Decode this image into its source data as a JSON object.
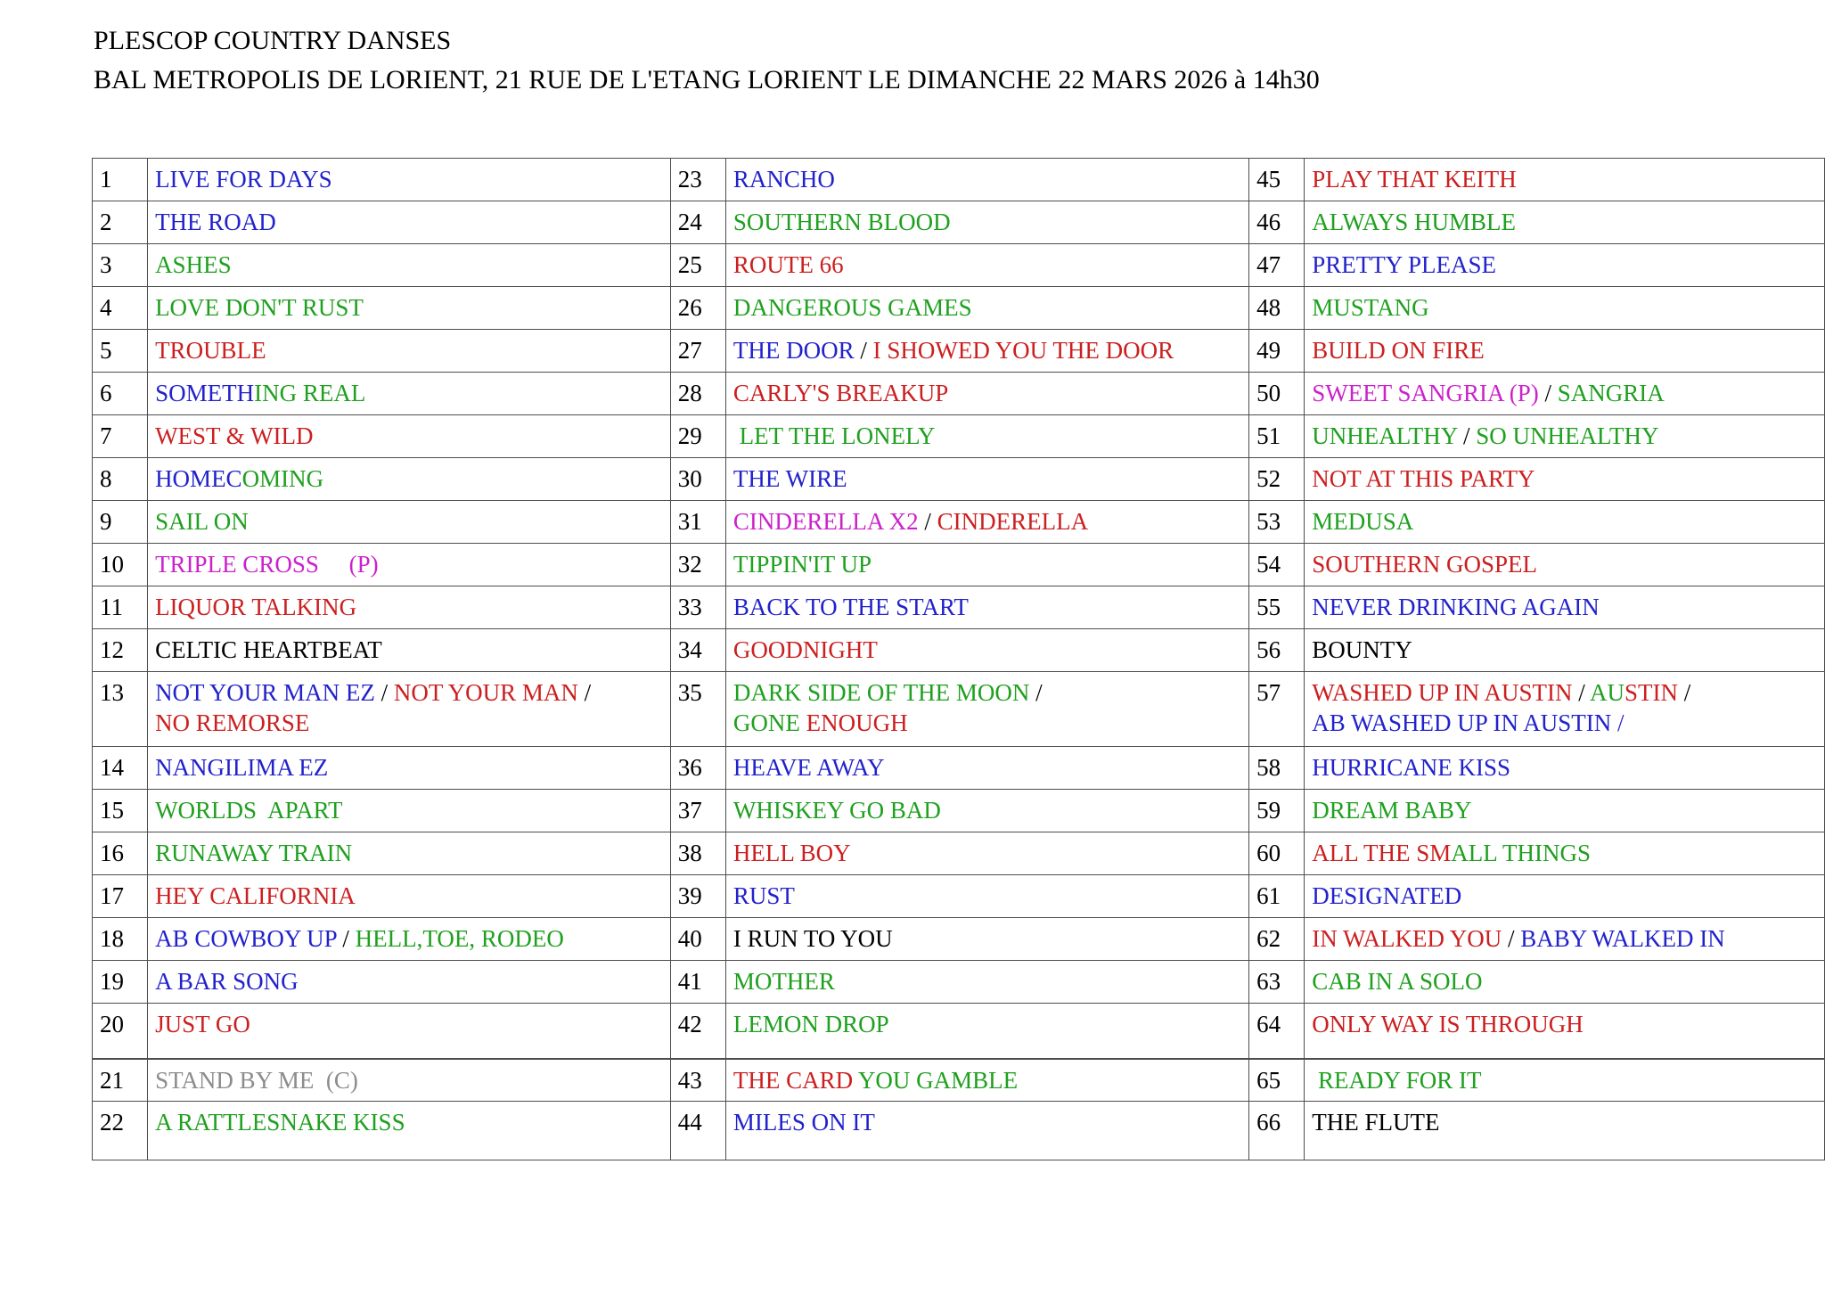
{
  "title": {
    "line1": "PLESCOP COUNTRY DANSES",
    "line2": "BAL METROPOLIS DE LORIENT, 21 RUE DE L'ETANG LORIENT LE DIMANCHE 22 MARS 2026 à 14h30"
  },
  "colors": {
    "blue": "#2222CC",
    "green": "#1FA01F",
    "red": "#CC1F1F",
    "magenta": "#CC22CC",
    "black": "#000000",
    "gray": "#8C8C8C"
  },
  "table": {
    "rows": [
      {
        "cells": [
          {
            "num": "1",
            "segs": [
              {
                "t": "LIVE FOR DAYS",
                "c": "blue"
              }
            ]
          },
          {
            "num": "23",
            "segs": [
              {
                "t": "RANCHO",
                "c": "blue"
              }
            ]
          },
          {
            "num": "45",
            "segs": [
              {
                "t": "PLAY THAT KEITH",
                "c": "red"
              }
            ]
          }
        ]
      },
      {
        "cells": [
          {
            "num": "2",
            "segs": [
              {
                "t": "THE ROAD",
                "c": "blue"
              }
            ]
          },
          {
            "num": "24",
            "segs": [
              {
                "t": "SOUTHERN BLOOD",
                "c": "green"
              }
            ]
          },
          {
            "num": "46",
            "segs": [
              {
                "t": "ALWAYS HUMBLE",
                "c": "green"
              }
            ]
          }
        ]
      },
      {
        "cells": [
          {
            "num": "3",
            "segs": [
              {
                "t": "ASHES",
                "c": "green"
              }
            ]
          },
          {
            "num": "25",
            "segs": [
              {
                "t": "ROUTE 66",
                "c": "red"
              }
            ]
          },
          {
            "num": "47",
            "segs": [
              {
                "t": "PRETTY PLEASE",
                "c": "blue"
              }
            ]
          }
        ]
      },
      {
        "cells": [
          {
            "num": "4",
            "segs": [
              {
                "t": "LOVE DON'T RUST",
                "c": "green"
              }
            ]
          },
          {
            "num": "26",
            "segs": [
              {
                "t": "DANGEROUS GAMES",
                "c": "green"
              }
            ]
          },
          {
            "num": "48",
            "segs": [
              {
                "t": "MUSTANG",
                "c": "green"
              }
            ]
          }
        ]
      },
      {
        "cells": [
          {
            "num": "5",
            "segs": [
              {
                "t": "TROUBLE",
                "c": "red"
              }
            ]
          },
          {
            "num": "27",
            "segs": [
              {
                "t": "THE DOOR",
                "c": "blue"
              },
              {
                "t": " / ",
                "c": "black"
              },
              {
                "t": "I SHOWED YOU THE DOOR",
                "c": "red"
              }
            ]
          },
          {
            "num": "49",
            "segs": [
              {
                "t": "BUILD ON FIRE",
                "c": "red"
              }
            ]
          }
        ]
      },
      {
        "cells": [
          {
            "num": "6",
            "segs": [
              {
                "t": "SOMETH",
                "c": "blue"
              },
              {
                "t": "ING REAL",
                "c": "green"
              }
            ]
          },
          {
            "num": "28",
            "segs": [
              {
                "t": "CARLY'S BREAKUP",
                "c": "red"
              }
            ]
          },
          {
            "num": "50",
            "segs": [
              {
                "t": "SWEET SANGRIA (P)",
                "c": "magenta"
              },
              {
                "t": " / ",
                "c": "black"
              },
              {
                "t": "SANGRIA",
                "c": "green"
              }
            ]
          }
        ]
      },
      {
        "cells": [
          {
            "num": "7",
            "segs": [
              {
                "t": "WEST & WILD",
                "c": "red"
              }
            ]
          },
          {
            "num": "29",
            "segs": [
              {
                "t": " LET THE LONELY",
                "c": "green"
              }
            ]
          },
          {
            "num": "51",
            "segs": [
              {
                "t": "UNHEALTHY",
                "c": "green"
              },
              {
                "t": " / ",
                "c": "black"
              },
              {
                "t": "SO UNHEALTHY",
                "c": "green"
              }
            ]
          }
        ]
      },
      {
        "cells": [
          {
            "num": "8",
            "segs": [
              {
                "t": "HOMEC",
                "c": "blue"
              },
              {
                "t": "OMING",
                "c": "green"
              }
            ]
          },
          {
            "num": "30",
            "segs": [
              {
                "t": "THE WIRE",
                "c": "blue"
              }
            ]
          },
          {
            "num": "52",
            "segs": [
              {
                "t": "NOT AT THIS PARTY",
                "c": "red"
              }
            ]
          }
        ]
      },
      {
        "cells": [
          {
            "num": "9",
            "segs": [
              {
                "t": "SAIL ON",
                "c": "green"
              }
            ]
          },
          {
            "num": "31",
            "segs": [
              {
                "t": "CINDERELLA X2",
                "c": "magenta"
              },
              {
                "t": " / ",
                "c": "black"
              },
              {
                "t": "CINDERELLA",
                "c": "red"
              }
            ]
          },
          {
            "num": "53",
            "segs": [
              {
                "t": "MEDUSA",
                "c": "green"
              }
            ]
          }
        ]
      },
      {
        "cells": [
          {
            "num": "10",
            "segs": [
              {
                "t": "TRIPLE CROSS     (P)",
                "c": "magenta"
              }
            ]
          },
          {
            "num": "32",
            "segs": [
              {
                "t": "TIPPIN'IT UP",
                "c": "green"
              }
            ]
          },
          {
            "num": "54",
            "segs": [
              {
                "t": "SOUTHERN GOSPEL",
                "c": "red"
              }
            ]
          }
        ]
      },
      {
        "cells": [
          {
            "num": "11",
            "segs": [
              {
                "t": "LIQUOR TALKING",
                "c": "red"
              }
            ]
          },
          {
            "num": "33",
            "segs": [
              {
                "t": "BACK TO THE START",
                "c": "blue"
              }
            ]
          },
          {
            "num": "55",
            "segs": [
              {
                "t": "NEVER DRINKING AGAIN",
                "c": "blue"
              }
            ]
          }
        ]
      },
      {
        "cells": [
          {
            "num": "12",
            "segs": [
              {
                "t": "CELTIC HEARTBEAT",
                "c": "black"
              }
            ]
          },
          {
            "num": "34",
            "segs": [
              {
                "t": "GOODNIGHT",
                "c": "red"
              }
            ]
          },
          {
            "num": "56",
            "segs": [
              {
                "t": "BOUNTY",
                "c": "black"
              }
            ]
          }
        ]
      },
      {
        "cls": "r-double",
        "cells": [
          {
            "num": "13",
            "segs": [
              {
                "t": "NOT YOUR MAN EZ",
                "c": "blue"
              },
              {
                "t": " / ",
                "c": "black"
              },
              {
                "t": "NOT YOUR MAN",
                "c": "red"
              },
              {
                "t": " /",
                "c": "black"
              },
              {
                "br": true
              },
              {
                "t": "NO REMORSE",
                "c": "red"
              }
            ]
          },
          {
            "num": "35",
            "segs": [
              {
                "t": "DARK SIDE OF THE MOON",
                "c": "green"
              },
              {
                "t": " /",
                "c": "black"
              },
              {
                "br": true
              },
              {
                "t": "GONE",
                "c": "green"
              },
              {
                "t": " ENOUGH",
                "c": "red"
              }
            ]
          },
          {
            "num": "57",
            "segs": [
              {
                "t": "WASHED UP IN AUSTIN",
                "c": "red"
              },
              {
                "t": " / ",
                "c": "black"
              },
              {
                "t": "AU",
                "c": "green"
              },
              {
                "t": "STIN",
                "c": "red"
              },
              {
                "t": " /",
                "c": "black"
              },
              {
                "br": true
              },
              {
                "t": "AB WASHED UP IN AUSTIN /",
                "c": "blue"
              }
            ]
          }
        ]
      },
      {
        "cells": [
          {
            "num": "14",
            "segs": [
              {
                "t": "NANGILIMA EZ",
                "c": "blue"
              }
            ]
          },
          {
            "num": "36",
            "segs": [
              {
                "t": "HEAVE AWAY",
                "c": "blue"
              }
            ]
          },
          {
            "num": "58",
            "segs": [
              {
                "t": "HURRICANE KISS",
                "c": "blue"
              }
            ]
          }
        ]
      },
      {
        "cells": [
          {
            "num": "15",
            "segs": [
              {
                "t": "WORLDS  APART",
                "c": "green"
              }
            ]
          },
          {
            "num": "37",
            "segs": [
              {
                "t": "WHISKEY GO BAD",
                "c": "green"
              }
            ]
          },
          {
            "num": "59",
            "segs": [
              {
                "t": "DREAM BABY",
                "c": "green"
              }
            ]
          }
        ]
      },
      {
        "cells": [
          {
            "num": "16",
            "segs": [
              {
                "t": "RUNAWAY TRAIN",
                "c": "green"
              }
            ]
          },
          {
            "num": "38",
            "segs": [
              {
                "t": "HELL BOY",
                "c": "red"
              }
            ]
          },
          {
            "num": "60",
            "segs": [
              {
                "t": "ALL THE SM",
                "c": "red"
              },
              {
                "t": "ALL THINGS",
                "c": "green"
              }
            ]
          }
        ]
      },
      {
        "cells": [
          {
            "num": "17",
            "segs": [
              {
                "t": "HEY CALIFORNIA",
                "c": "red"
              }
            ]
          },
          {
            "num": "39",
            "segs": [
              {
                "t": "RUST",
                "c": "blue"
              }
            ]
          },
          {
            "num": "61",
            "segs": [
              {
                "t": "DESIGNATED",
                "c": "blue"
              }
            ]
          }
        ]
      },
      {
        "cells": [
          {
            "num": "18",
            "segs": [
              {
                "t": "AB COWBOY UP",
                "c": "blue"
              },
              {
                "t": " / ",
                "c": "black"
              },
              {
                "t": "HELL,TOE, RODEO",
                "c": "green"
              }
            ]
          },
          {
            "num": "40",
            "segs": [
              {
                "t": "I RUN TO YOU",
                "c": "black"
              }
            ]
          },
          {
            "num": "62",
            "segs": [
              {
                "t": "IN WALKED YOU",
                "c": "red"
              },
              {
                "t": " / ",
                "c": "black"
              },
              {
                "t": "BABY WALKED IN",
                "c": "blue"
              }
            ]
          }
        ]
      },
      {
        "cells": [
          {
            "num": "19",
            "segs": [
              {
                "t": "A BAR SONG",
                "c": "blue"
              }
            ]
          },
          {
            "num": "41",
            "segs": [
              {
                "t": "MOTHER",
                "c": "green"
              }
            ]
          },
          {
            "num": "63",
            "segs": [
              {
                "t": "CAB IN A SOLO",
                "c": "green"
              }
            ]
          }
        ]
      },
      {
        "cls": "r-tall",
        "cells": [
          {
            "num": "20",
            "segs": [
              {
                "t": "JUST GO",
                "c": "red"
              }
            ]
          },
          {
            "num": "42",
            "segs": [
              {
                "t": "LEMON DROP",
                "c": "green"
              }
            ]
          },
          {
            "num": "64",
            "segs": [
              {
                "t": "ONLY WAY IS THROUGH",
                "c": "red"
              }
            ]
          }
        ]
      },
      {
        "cls": "r-normal thick-top",
        "cells": [
          {
            "num": "21",
            "segs": [
              {
                "t": "STAND BY ME  (C)",
                "c": "gray"
              }
            ]
          },
          {
            "num": "43",
            "segs": [
              {
                "t": "THE CARD ",
                "c": "red"
              },
              {
                "t": "YOU GAMBLE",
                "c": "green"
              }
            ]
          },
          {
            "num": "65",
            "segs": [
              {
                "t": " READY FOR IT",
                "c": "green"
              }
            ]
          }
        ]
      },
      {
        "cls": "r-tall-last",
        "cells": [
          {
            "num": "22",
            "segs": [
              {
                "t": "A RATTLESNAKE KISS",
                "c": "green"
              }
            ]
          },
          {
            "num": "44",
            "segs": [
              {
                "t": "MILES ON IT",
                "c": "blue"
              }
            ]
          },
          {
            "num": "66",
            "segs": [
              {
                "t": "THE FLUTE",
                "c": "black"
              }
            ]
          }
        ]
      }
    ]
  }
}
